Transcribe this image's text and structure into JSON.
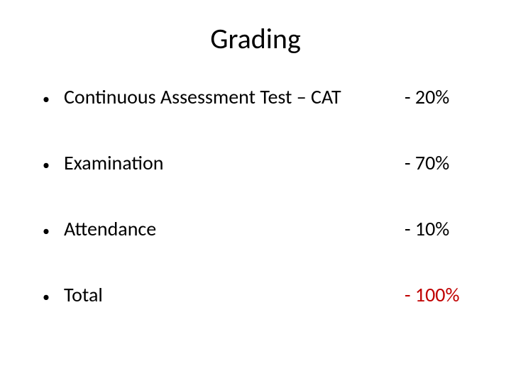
{
  "title": "Grading",
  "items": [
    {
      "label": "Continuous Assessment Test – CAT",
      "value": "- 20%",
      "is_total": false
    },
    {
      "label": "Examination",
      "value": "- 70%",
      "is_total": false
    },
    {
      "label": "Attendance",
      "value": "- 10%",
      "is_total": false
    },
    {
      "label": "Total",
      "value": "- 100%",
      "is_total": true
    }
  ],
  "styling": {
    "background_color": "#ffffff",
    "title_color": "#000000",
    "title_fontsize": 40,
    "body_color": "#000000",
    "body_fontsize": 28,
    "total_value_color": "#c00000",
    "bullet_char": "•",
    "font_family": "Calibri, Arial, sans-serif"
  }
}
